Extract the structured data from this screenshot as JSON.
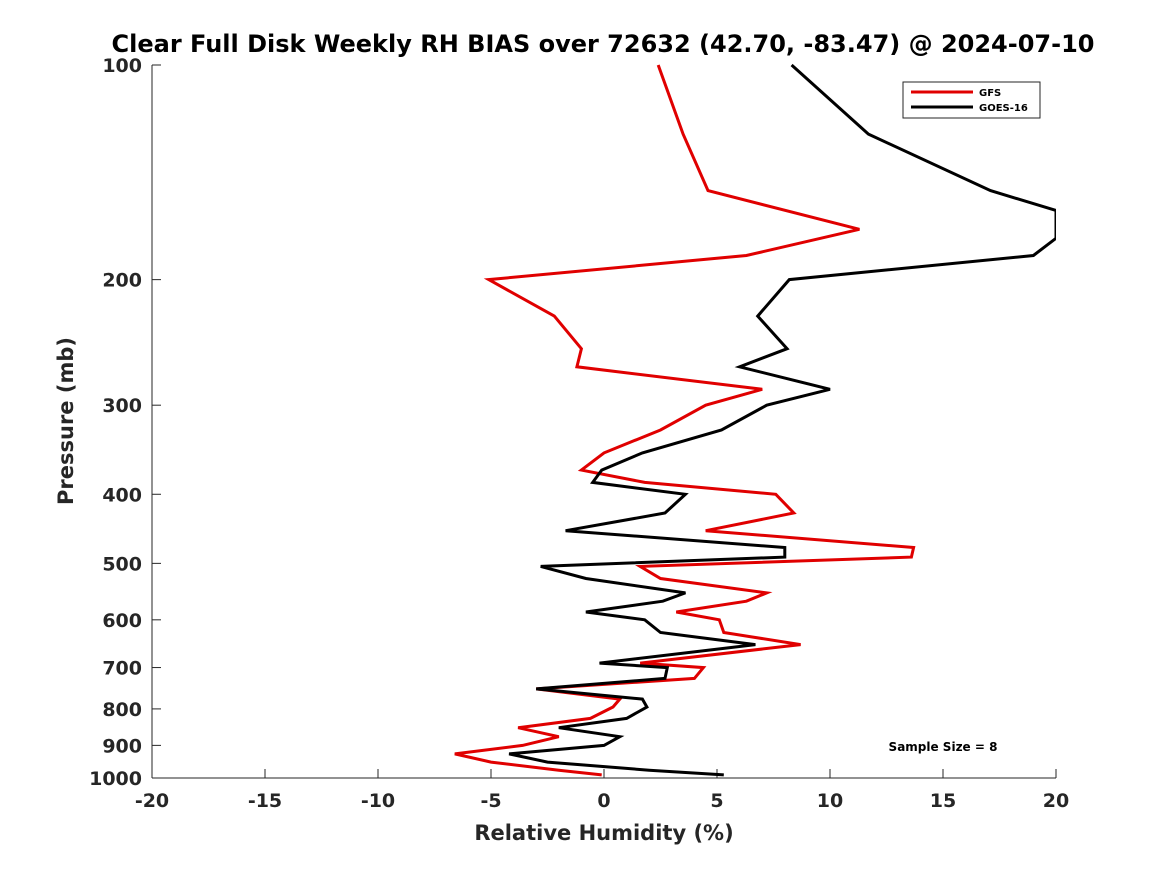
{
  "chart_data": {
    "type": "line",
    "title": "Clear Full Disk Weekly RH BIAS over 72632 (42.70, -83.47) @ 2024-07-10",
    "xlabel": "Relative Humidity (%)",
    "ylabel": "Pressure (mb)",
    "xlim": [
      -20,
      20
    ],
    "ylim": [
      100,
      1000
    ],
    "y_scale": "log",
    "y_reversed": true,
    "x_ticks": [
      "-20",
      "-15",
      "-10",
      "-5",
      "0",
      "5",
      "10",
      "15",
      "20"
    ],
    "y_ticks": [
      "100",
      "200",
      "300",
      "400",
      "500",
      "600",
      "700",
      "800",
      "900",
      "1000"
    ],
    "grid": false,
    "legend_position": "top-right",
    "annotation": "Sample Size = 8",
    "series": [
      {
        "name": "GFS",
        "color": "#e00000",
        "points": [
          {
            "x": 2.4,
            "p": 100
          },
          {
            "x": 3.5,
            "p": 125
          },
          {
            "x": 4.6,
            "p": 150
          },
          {
            "x": 11.3,
            "p": 170
          },
          {
            "x": 6.3,
            "p": 185
          },
          {
            "x": -5.1,
            "p": 200
          },
          {
            "x": -2.2,
            "p": 225
          },
          {
            "x": -1.0,
            "p": 250
          },
          {
            "x": -1.2,
            "p": 265
          },
          {
            "x": 7.0,
            "p": 285
          },
          {
            "x": 4.5,
            "p": 300
          },
          {
            "x": 2.5,
            "p": 325
          },
          {
            "x": 0.0,
            "p": 350
          },
          {
            "x": -1.0,
            "p": 370
          },
          {
            "x": 1.8,
            "p": 385
          },
          {
            "x": 7.6,
            "p": 400
          },
          {
            "x": 8.4,
            "p": 425
          },
          {
            "x": 4.5,
            "p": 450
          },
          {
            "x": 13.7,
            "p": 475
          },
          {
            "x": 13.6,
            "p": 490
          },
          {
            "x": 1.6,
            "p": 505
          },
          {
            "x": 2.5,
            "p": 525
          },
          {
            "x": 7.2,
            "p": 550
          },
          {
            "x": 6.3,
            "p": 565
          },
          {
            "x": 3.2,
            "p": 585
          },
          {
            "x": 5.1,
            "p": 600
          },
          {
            "x": 5.3,
            "p": 625
          },
          {
            "x": 8.7,
            "p": 650
          },
          {
            "x": 1.6,
            "p": 690
          },
          {
            "x": 4.4,
            "p": 700
          },
          {
            "x": 4.0,
            "p": 725
          },
          {
            "x": -3.0,
            "p": 750
          },
          {
            "x": 0.7,
            "p": 775
          },
          {
            "x": 0.4,
            "p": 795
          },
          {
            "x": -0.6,
            "p": 825
          },
          {
            "x": -3.8,
            "p": 850
          },
          {
            "x": -2.0,
            "p": 875
          },
          {
            "x": -3.6,
            "p": 900
          },
          {
            "x": -6.6,
            "p": 925
          },
          {
            "x": -5.0,
            "p": 950
          },
          {
            "x": -2.0,
            "p": 975
          },
          {
            "x": -0.1,
            "p": 990
          }
        ]
      },
      {
        "name": "GOES-16",
        "color": "#000000",
        "points": [
          {
            "x": 8.3,
            "p": 100
          },
          {
            "x": 11.7,
            "p": 125
          },
          {
            "x": 17.1,
            "p": 150
          },
          {
            "x": 20.0,
            "p": 160
          },
          {
            "x": 20.0,
            "p": 175
          },
          {
            "x": 19.0,
            "p": 185
          },
          {
            "x": 8.2,
            "p": 200
          },
          {
            "x": 6.8,
            "p": 225
          },
          {
            "x": 8.1,
            "p": 250
          },
          {
            "x": 6.0,
            "p": 265
          },
          {
            "x": 10.0,
            "p": 285
          },
          {
            "x": 7.2,
            "p": 300
          },
          {
            "x": 5.2,
            "p": 325
          },
          {
            "x": 1.7,
            "p": 350
          },
          {
            "x": -0.1,
            "p": 370
          },
          {
            "x": -0.5,
            "p": 385
          },
          {
            "x": 3.6,
            "p": 400
          },
          {
            "x": 2.7,
            "p": 425
          },
          {
            "x": -1.7,
            "p": 450
          },
          {
            "x": 8.0,
            "p": 475
          },
          {
            "x": 8.0,
            "p": 490
          },
          {
            "x": -2.8,
            "p": 505
          },
          {
            "x": -0.8,
            "p": 525
          },
          {
            "x": 3.6,
            "p": 550
          },
          {
            "x": 2.6,
            "p": 565
          },
          {
            "x": -0.8,
            "p": 585
          },
          {
            "x": 1.8,
            "p": 600
          },
          {
            "x": 2.5,
            "p": 625
          },
          {
            "x": 6.7,
            "p": 650
          },
          {
            "x": -0.2,
            "p": 690
          },
          {
            "x": 2.8,
            "p": 700
          },
          {
            "x": 2.7,
            "p": 725
          },
          {
            "x": -3.0,
            "p": 750
          },
          {
            "x": 1.7,
            "p": 775
          },
          {
            "x": 1.9,
            "p": 795
          },
          {
            "x": 1.0,
            "p": 825
          },
          {
            "x": -2.0,
            "p": 850
          },
          {
            "x": 0.7,
            "p": 875
          },
          {
            "x": 0.0,
            "p": 900
          },
          {
            "x": -4.2,
            "p": 925
          },
          {
            "x": -2.5,
            "p": 950
          },
          {
            "x": 2.0,
            "p": 975
          },
          {
            "x": 5.3,
            "p": 990
          }
        ]
      }
    ]
  }
}
